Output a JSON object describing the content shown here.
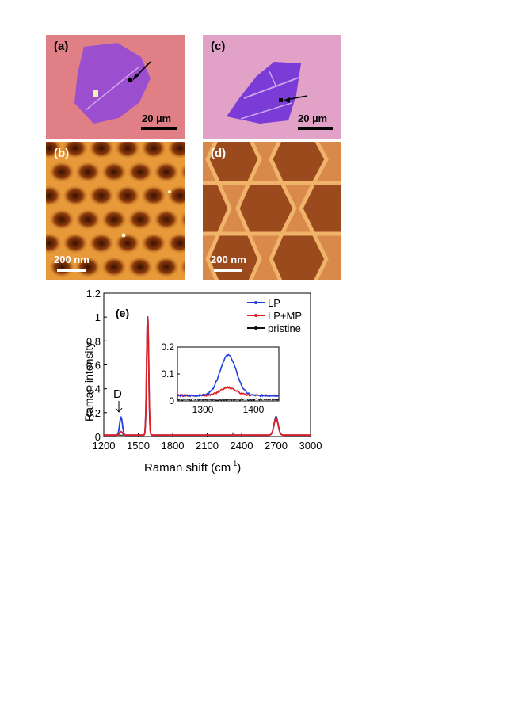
{
  "panels": {
    "a": {
      "label": "(a)",
      "scale": "20 µm"
    },
    "b": {
      "label": "(b)",
      "scale": "200 nm"
    },
    "c": {
      "label": "(c)",
      "scale": "20 µm"
    },
    "d": {
      "label": "(d)",
      "scale": "200 nm"
    }
  },
  "chart_data": {
    "type": "line",
    "panel_label": "(e)",
    "xlabel": "Raman shift  (cm",
    "xlabel_sup": "-1",
    "xlabel_end": ")",
    "ylabel": "Raman intensity",
    "xlim": [
      1200,
      3000
    ],
    "ylim": [
      0,
      1.2
    ],
    "xticks": [
      "1200",
      "1500",
      "1800",
      "2100",
      "2400",
      "2700",
      "3000"
    ],
    "yticks": [
      "0",
      "0.2",
      "0.4",
      "0.6",
      "0.8",
      "1",
      "1.2"
    ],
    "annotation": "D",
    "legend_position": "top-right",
    "colors": {
      "LP": "#2040e0",
      "LP+MP": "#e02020",
      "pristine": "#111111"
    },
    "series": [
      {
        "name": "LP",
        "peaks": [
          [
            1350,
            0.15
          ],
          [
            1582,
            1.0
          ],
          [
            2700,
            0.15
          ]
        ]
      },
      {
        "name": "LP+MP",
        "peaks": [
          [
            1350,
            0.03
          ],
          [
            1582,
            1.0
          ],
          [
            2700,
            0.14
          ]
        ]
      },
      {
        "name": "pristine",
        "peaks": [
          [
            1582,
            1.0
          ],
          [
            2700,
            0.16
          ]
        ]
      }
    ],
    "inset": {
      "xlim": [
        1250,
        1450
      ],
      "ylim": [
        0,
        0.2
      ],
      "xticks": [
        "1300",
        "1400"
      ],
      "yticks": [
        "0",
        "0.1",
        "0.2"
      ],
      "series": [
        {
          "name": "LP",
          "peak": [
            1350,
            0.15
          ],
          "baseline": 0.02
        },
        {
          "name": "LP+MP",
          "peak": [
            1350,
            0.03
          ],
          "baseline": 0.02
        },
        {
          "name": "pristine",
          "peak": [
            1350,
            0.0
          ],
          "baseline": 0.005
        }
      ]
    }
  }
}
